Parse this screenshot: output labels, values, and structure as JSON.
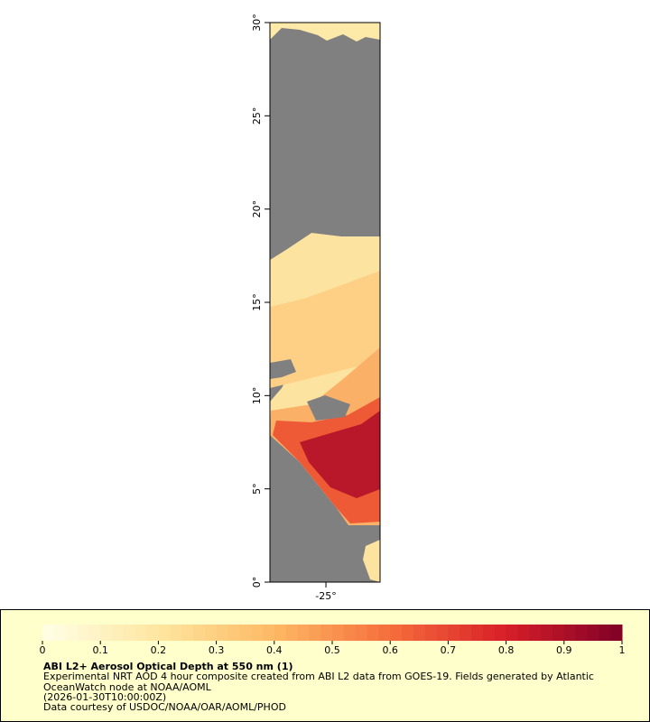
{
  "map": {
    "xlim": [
      -28,
      -22.1
    ],
    "ylim": [
      0,
      30
    ],
    "xticks": [
      {
        "value": -25,
        "label": "-25°"
      }
    ],
    "yticks": [
      {
        "value": 0,
        "label": "0°"
      },
      {
        "value": 5,
        "label": "5°"
      },
      {
        "value": 10,
        "label": "10°"
      },
      {
        "value": 15,
        "label": "15°"
      },
      {
        "value": 20,
        "label": "20°"
      },
      {
        "value": 25,
        "label": "25°"
      },
      {
        "value": 30,
        "label": "30°"
      }
    ]
  },
  "colorbar": {
    "range": [
      0,
      1
    ],
    "ticks": [
      0,
      0.1,
      0.2,
      0.3,
      0.4,
      0.5,
      0.6,
      0.7,
      0.8,
      0.9,
      1
    ]
  },
  "legend": {
    "title": "ABI L2+ Aerosol Optical Depth at 550 nm (1)",
    "lines": [
      "Experimental NRT AOD 4 hour composite created from ABI L2 data from GOES-19. Fields generated by Atlantic",
      "OceanWatch node at NOAA/AOML",
      "(2026-01-30T10:00:00Z)",
      "Data courtesy of USDOC/NOAA/OAR/AOML/PHOD"
    ]
  }
}
